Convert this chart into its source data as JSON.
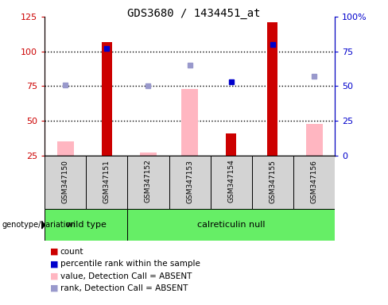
{
  "title": "GDS3680 / 1434451_at",
  "samples": [
    "GSM347150",
    "GSM347151",
    "GSM347152",
    "GSM347153",
    "GSM347154",
    "GSM347155",
    "GSM347156"
  ],
  "count": [
    null,
    107,
    null,
    null,
    41,
    121,
    null
  ],
  "count_absent_value": [
    35,
    null,
    27,
    73,
    null,
    null,
    48
  ],
  "percentile_rank": [
    null,
    77,
    null,
    null,
    53,
    80,
    null
  ],
  "percentile_rank_absent": [
    51,
    null,
    50,
    65,
    null,
    null,
    57
  ],
  "ylim_left": [
    25,
    125
  ],
  "ylim_right": [
    0,
    100
  ],
  "yticks_left": [
    25,
    50,
    75,
    100,
    125
  ],
  "yticks_right": [
    0,
    25,
    50,
    75,
    100
  ],
  "ytick_labels_left": [
    "25",
    "50",
    "75",
    "100",
    "125"
  ],
  "ytick_labels_right": [
    "0",
    "25",
    "50",
    "75",
    "100%"
  ],
  "bar_color_count": "#cc0000",
  "bar_color_absent_value": "#FFB6C1",
  "dot_color_present": "#0000cc",
  "dot_color_absent": "#9999CC",
  "left_axis_color": "#cc0000",
  "right_axis_color": "#0000cc",
  "legend_items": [
    {
      "label": "count",
      "color": "#cc0000"
    },
    {
      "label": "percentile rank within the sample",
      "color": "#0000cc"
    },
    {
      "label": "value, Detection Call = ABSENT",
      "color": "#FFB6C1"
    },
    {
      "label": "rank, Detection Call = ABSENT",
      "color": "#9999CC"
    }
  ]
}
